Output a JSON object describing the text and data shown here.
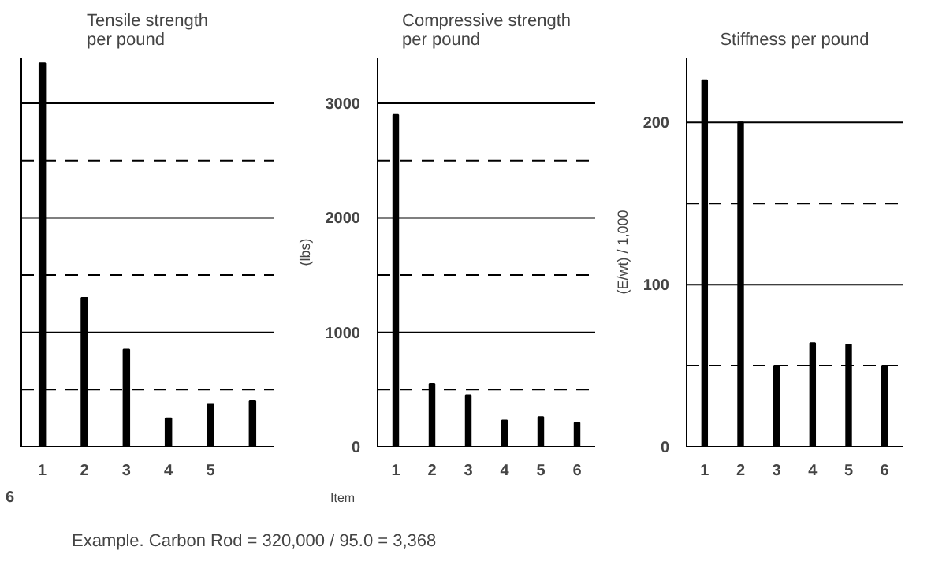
{
  "chart_data": [
    {
      "type": "bar",
      "title": "Tensile strength\nper pound",
      "categories": [
        "1",
        "2",
        "3",
        "4",
        "5",
        null
      ],
      "values": [
        3350,
        1300,
        850,
        250,
        375,
        400
      ],
      "color": "#000000",
      "ylim": [
        0,
        3400
      ],
      "yticks": [
        0,
        {
          "value": 500,
          "label": null
        },
        1000,
        {
          "value": 1500,
          "label": null
        },
        2000,
        {
          "value": 2500,
          "label": null
        },
        3000
      ],
      "grid": "y",
      "tick_labels": "x",
      "annotations": [
        "6"
      ]
    },
    {
      "type": "bar",
      "title": "Compressive strength\nper pound",
      "ylabel": "(lbs)",
      "xlabel": "Item",
      "categories": [
        "1",
        "2",
        "3",
        "4",
        "5",
        "6"
      ],
      "values": [
        2900,
        550,
        450,
        230,
        260,
        210
      ],
      "color": "#000000",
      "ylim": [
        0,
        3400
      ],
      "yticks": [
        0,
        {
          "value": 500,
          "label": null
        },
        1000,
        {
          "value": 1500,
          "label": null
        },
        2000,
        {
          "value": 2500,
          "label": null
        },
        3000
      ],
      "grid": "y",
      "annotations": [
        "Example.   Carbon Rod  =  320,000 /  95.0  =  3,368"
      ]
    },
    {
      "type": "bar",
      "title": "Stiffness per pound",
      "ylabel": "(E/wt) / 1,000",
      "categories": [
        "1",
        "2",
        "3",
        "4",
        "5",
        "6"
      ],
      "values": [
        226,
        200,
        50,
        64,
        63,
        50
      ],
      "color": "#000000",
      "ylim": [
        0,
        240
      ],
      "yticks": [
        0,
        {
          "value": 50,
          "label": null
        },
        100,
        {
          "value": 150,
          "label": null
        },
        200
      ],
      "grid": "y"
    }
  ]
}
